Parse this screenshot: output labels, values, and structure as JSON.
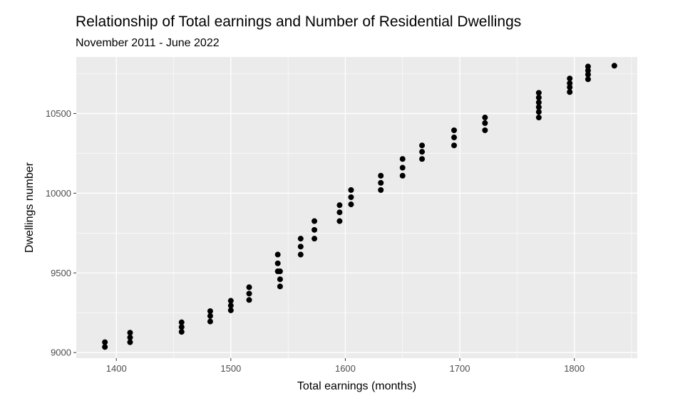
{
  "chart_data": {
    "type": "scatter",
    "title": "Relationship of Total earnings and Number of Residential Dwellings",
    "subtitle": "November 2011 - June 2022",
    "xlabel": "Total earnings (months)",
    "ylabel": "Dwellings number",
    "xlim": [
      1365,
      1855
    ],
    "ylim": [
      8965,
      10855
    ],
    "x_ticks": [
      1400,
      1500,
      1600,
      1700,
      1800
    ],
    "y_ticks": [
      9000,
      9500,
      10000,
      10500
    ],
    "x_tick_labels": [
      "1400",
      "1500",
      "1600",
      "1700",
      "1800"
    ],
    "y_tick_labels": [
      "9000",
      "9500",
      "10000",
      "10500"
    ],
    "grid": true,
    "point_color": "#000000",
    "panel_color": "#ebebeb",
    "grid_color": "#ffffff",
    "points": [
      {
        "x": 1390,
        "y": 9035
      },
      {
        "x": 1390,
        "y": 9065
      },
      {
        "x": 1412,
        "y": 9065
      },
      {
        "x": 1412,
        "y": 9095
      },
      {
        "x": 1412,
        "y": 9125
      },
      {
        "x": 1457,
        "y": 9130
      },
      {
        "x": 1457,
        "y": 9160
      },
      {
        "x": 1457,
        "y": 9190
      },
      {
        "x": 1482,
        "y": 9195
      },
      {
        "x": 1482,
        "y": 9230
      },
      {
        "x": 1482,
        "y": 9260
      },
      {
        "x": 1500,
        "y": 9265
      },
      {
        "x": 1500,
        "y": 9295
      },
      {
        "x": 1500,
        "y": 9325
      },
      {
        "x": 1516,
        "y": 9330
      },
      {
        "x": 1516,
        "y": 9370
      },
      {
        "x": 1516,
        "y": 9410
      },
      {
        "x": 1541,
        "y": 9510
      },
      {
        "x": 1541,
        "y": 9560
      },
      {
        "x": 1541,
        "y": 9615
      },
      {
        "x": 1543,
        "y": 9415
      },
      {
        "x": 1543,
        "y": 9460
      },
      {
        "x": 1543,
        "y": 9510
      },
      {
        "x": 1561,
        "y": 9615
      },
      {
        "x": 1561,
        "y": 9665
      },
      {
        "x": 1561,
        "y": 9715
      },
      {
        "x": 1573,
        "y": 9715
      },
      {
        "x": 1573,
        "y": 9770
      },
      {
        "x": 1573,
        "y": 9825
      },
      {
        "x": 1595,
        "y": 9825
      },
      {
        "x": 1595,
        "y": 9880
      },
      {
        "x": 1595,
        "y": 9925
      },
      {
        "x": 1605,
        "y": 9930
      },
      {
        "x": 1605,
        "y": 9975
      },
      {
        "x": 1605,
        "y": 10020
      },
      {
        "x": 1631,
        "y": 10020
      },
      {
        "x": 1631,
        "y": 10065
      },
      {
        "x": 1631,
        "y": 10110
      },
      {
        "x": 1650,
        "y": 10110
      },
      {
        "x": 1650,
        "y": 10160
      },
      {
        "x": 1650,
        "y": 10215
      },
      {
        "x": 1667,
        "y": 10215
      },
      {
        "x": 1667,
        "y": 10260
      },
      {
        "x": 1667,
        "y": 10300
      },
      {
        "x": 1695,
        "y": 10300
      },
      {
        "x": 1695,
        "y": 10350
      },
      {
        "x": 1695,
        "y": 10395
      },
      {
        "x": 1722,
        "y": 10395
      },
      {
        "x": 1722,
        "y": 10440
      },
      {
        "x": 1722,
        "y": 10475
      },
      {
        "x": 1769,
        "y": 10475
      },
      {
        "x": 1769,
        "y": 10510
      },
      {
        "x": 1769,
        "y": 10540
      },
      {
        "x": 1769,
        "y": 10570
      },
      {
        "x": 1769,
        "y": 10600
      },
      {
        "x": 1769,
        "y": 10630
      },
      {
        "x": 1796,
        "y": 10635
      },
      {
        "x": 1796,
        "y": 10665
      },
      {
        "x": 1796,
        "y": 10690
      },
      {
        "x": 1796,
        "y": 10720
      },
      {
        "x": 1812,
        "y": 10715
      },
      {
        "x": 1812,
        "y": 10745
      },
      {
        "x": 1812,
        "y": 10770
      },
      {
        "x": 1812,
        "y": 10795
      },
      {
        "x": 1835,
        "y": 10800
      }
    ]
  }
}
